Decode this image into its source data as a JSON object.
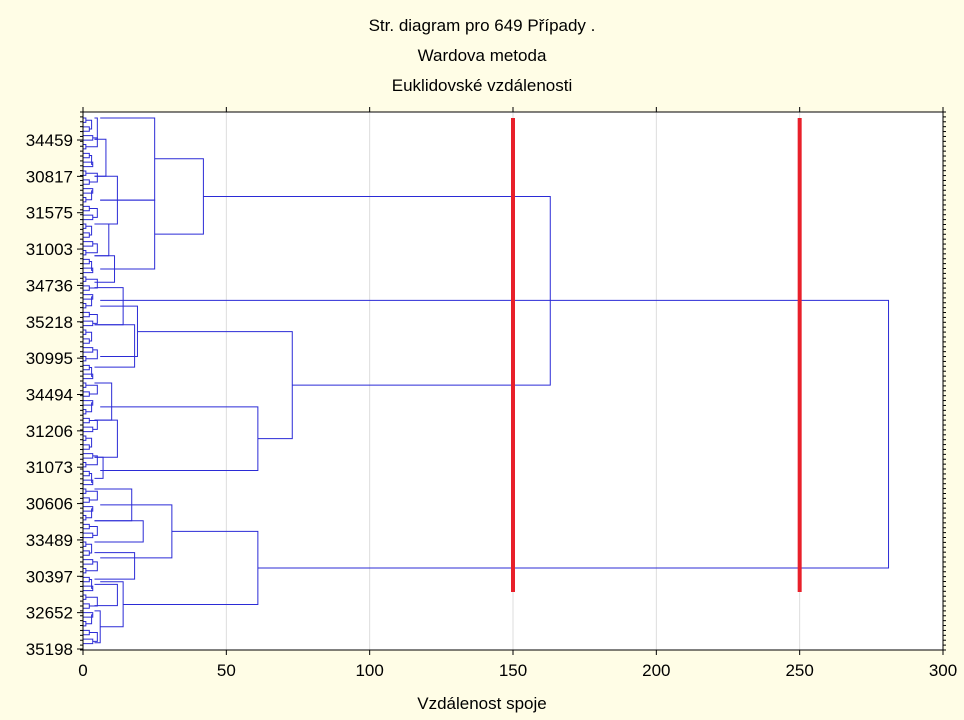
{
  "chart_data": {
    "type": "dendrogram",
    "title": [
      "Str. diagram pro 649 Případy .",
      "Wardova metoda",
      "Euklidovské vzdálenosti"
    ],
    "xlabel": "Vzdálenost spoje",
    "xlim": [
      0,
      300
    ],
    "xticks": [
      0,
      50,
      100,
      150,
      200,
      250,
      300
    ],
    "leaf_labels": [
      "34459",
      "30817",
      "31575",
      "31003",
      "34736",
      "35218",
      "30995",
      "34494",
      "31206",
      "31073",
      "30606",
      "33489",
      "30397",
      "32652",
      "35198"
    ],
    "n_cases": 649,
    "cut_lines": [
      150,
      250
    ],
    "cut_line_color": "#e8202a",
    "line_color": "#2b2bd6",
    "grid": true,
    "grid_color": "#dddddd",
    "merges": [
      {
        "name": "g1",
        "a": 0.0,
        "b": 0.155,
        "height": 25
      },
      {
        "name": "g2",
        "a": 0.155,
        "b": 0.285,
        "height": 25
      },
      {
        "name": "g12",
        "a": 0.077,
        "b": 0.219,
        "height": 42
      },
      {
        "name": "g3",
        "a": 0.355,
        "b": 0.45,
        "height": 19
      },
      {
        "name": "g4",
        "a": 0.545,
        "b": 0.665,
        "height": 61
      },
      {
        "name": "g34",
        "a": 0.403,
        "b": 0.605,
        "height": 73
      },
      {
        "name": "g5",
        "a": 0.73,
        "b": 0.83,
        "height": 31
      },
      {
        "name": "g6",
        "a": 0.875,
        "b": 0.96,
        "height": 14
      },
      {
        "name": "g56",
        "a": 0.78,
        "b": 0.918,
        "height": 61
      },
      {
        "name": "A",
        "a": 0.148,
        "b": 0.504,
        "height": 163
      },
      {
        "name": "root",
        "a": 0.344,
        "b": 0.849,
        "height": 281
      }
    ]
  }
}
